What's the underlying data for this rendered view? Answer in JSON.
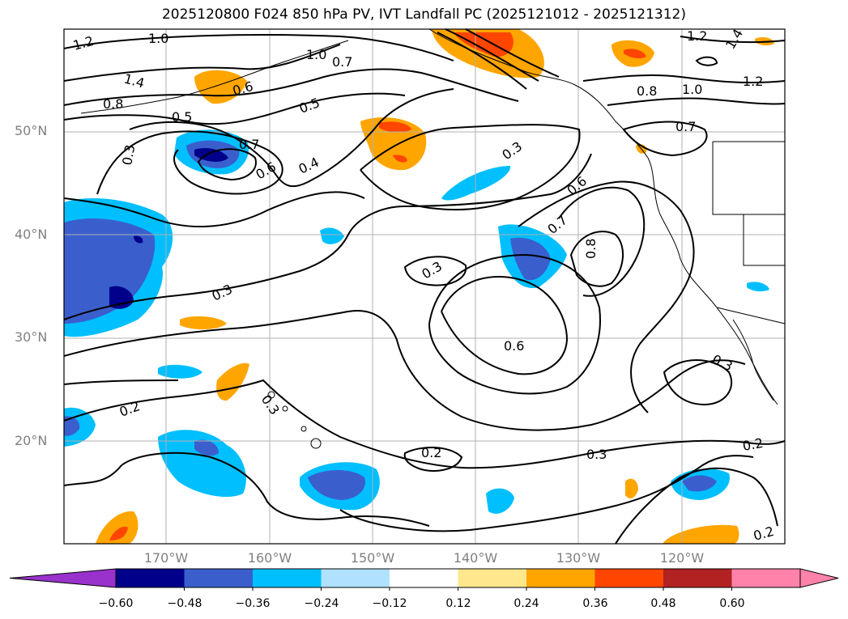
{
  "title": "2025120800 F024 850 hPa PV, IVT Landfall PC (2025121012 - 2025121312)",
  "colors": {
    "neg_strong": "#00008b",
    "neg_med": "#3a5fcd",
    "neg_light": "#00bfff",
    "neg_pale": "#b0e2ff",
    "pos_pale": "#ffe88c",
    "pos_light": "#ffa500",
    "pos_med": "#ff4500",
    "pos_strong": "#b22222",
    "pos_extreme": "#ff82ab",
    "neg_extreme": "#9932cc",
    "contour": "#000000",
    "grid": "#b0b0b0"
  },
  "latitude_labels": [
    "50°N",
    "40°N",
    "30°N",
    "20°N"
  ],
  "longitude_labels": [
    "170°W",
    "160°W",
    "150°W",
    "140°W",
    "130°W",
    "120°W"
  ],
  "colorbar": {
    "ticks": [
      "−0.60",
      "−0.48",
      "−0.36",
      "−0.24",
      "−0.12",
      "0.12",
      "0.24",
      "0.36",
      "0.48",
      "0.60"
    ],
    "segment_colors": [
      "#9932cc",
      "#00008b",
      "#3a5fcd",
      "#1e90ff",
      "#00bfff",
      "#b0e2ff",
      "#ffffff",
      "#ffe88c",
      "#ffa500",
      "#ff4500",
      "#b22222",
      "#ff82ab"
    ]
  },
  "contour_labels": [
    "1.2",
    "1.0",
    "1.4",
    "0.8",
    "0.5",
    "0.6",
    "0.7",
    "0.3",
    "0.6",
    "0.4",
    "0.5",
    "1.0",
    "0.7",
    "0.3",
    "0.6",
    "0.7",
    "0.8",
    "0.3",
    "0.3",
    "0.6",
    "0.2",
    "0.3",
    "0.2",
    "0.3",
    "0.2",
    "0.3",
    "1.2",
    "1.4",
    "0.8",
    "1.0",
    "1.2",
    "0.7",
    "0.2"
  ]
}
